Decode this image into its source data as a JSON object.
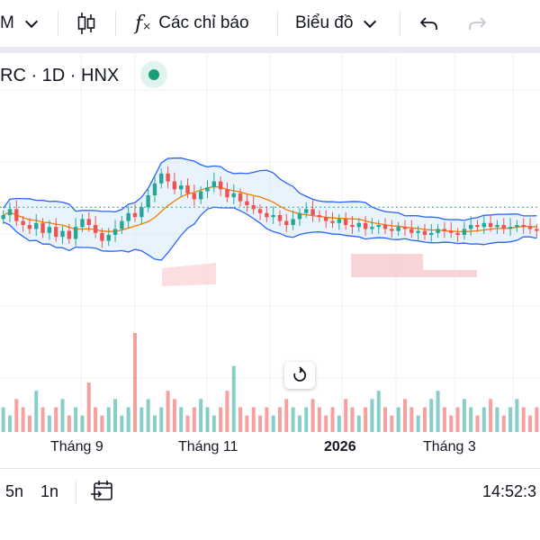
{
  "toolbar": {
    "interval_label": "M",
    "indicators_label": "Các chỉ báo",
    "chart_type_label": "Biểu đồ",
    "fx_label": "f"
  },
  "legend": {
    "symbol_text": "RC · 1D · HNX",
    "status_color": "#1a9e7a"
  },
  "time_axis": {
    "labels": [
      "Tháng 9",
      "Tháng 11",
      "2026",
      "Tháng 3"
    ]
  },
  "bottom_bar": {
    "range_5y": "5n",
    "range_1y": "1n",
    "clock": "14:52:3"
  },
  "colors": {
    "up": "#26a69a",
    "down": "#ef5350",
    "bollinger": "#2962ff",
    "ma": "#f57c00",
    "cloud_fill": "#d6e9f8",
    "kumo_red": "#f8c9cc"
  },
  "chart_data": {
    "type": "candlestick",
    "series": [
      {
        "name": "price",
        "values": [
          21.5,
          21.8,
          21.2,
          21.0,
          20.8,
          21.1,
          20.6,
          20.9,
          20.4,
          20.7,
          20.3,
          20.9,
          21.3,
          21.0,
          20.6,
          20.2,
          20.5,
          20.8,
          21.2,
          21.6,
          21.4,
          21.9,
          22.5,
          23.1,
          23.6,
          23.2,
          22.8,
          23.0,
          22.6,
          22.3,
          22.7,
          22.9,
          23.2,
          22.8,
          22.4,
          22.6,
          22.2,
          22.0,
          21.8,
          21.6,
          21.4,
          21.5,
          21.2,
          21.0,
          21.3,
          21.6,
          21.8,
          21.5,
          21.4,
          21.2,
          21.1,
          21.3,
          21.0,
          20.9,
          21.1,
          20.8,
          20.9,
          21.0,
          20.8,
          20.7,
          20.9,
          20.8,
          20.6,
          20.7,
          20.5,
          20.6,
          20.8,
          20.7,
          20.6,
          20.5,
          20.8,
          21.0,
          20.9,
          21.1,
          20.9,
          21.0,
          20.8,
          20.9,
          21.0,
          20.9,
          20.8,
          20.7
        ]
      },
      {
        "name": "volume",
        "values": [
          3,
          2,
          4,
          3,
          2,
          5,
          3,
          2,
          3,
          4,
          2,
          3,
          2,
          6,
          3,
          2,
          3,
          4,
          2,
          3,
          12,
          3,
          4,
          2,
          3,
          5,
          4,
          3,
          2,
          3,
          4,
          3,
          2,
          3,
          5,
          8,
          3,
          2,
          3,
          2,
          3,
          2,
          3,
          4,
          3,
          2,
          3,
          4,
          3,
          2,
          3,
          2,
          4,
          3,
          2,
          3,
          4,
          5,
          3,
          2,
          3,
          4,
          3,
          2,
          3,
          4,
          5,
          3,
          2,
          3,
          4,
          3,
          2,
          3,
          4,
          3,
          2,
          3,
          4,
          3,
          2,
          3
        ]
      }
    ]
  }
}
